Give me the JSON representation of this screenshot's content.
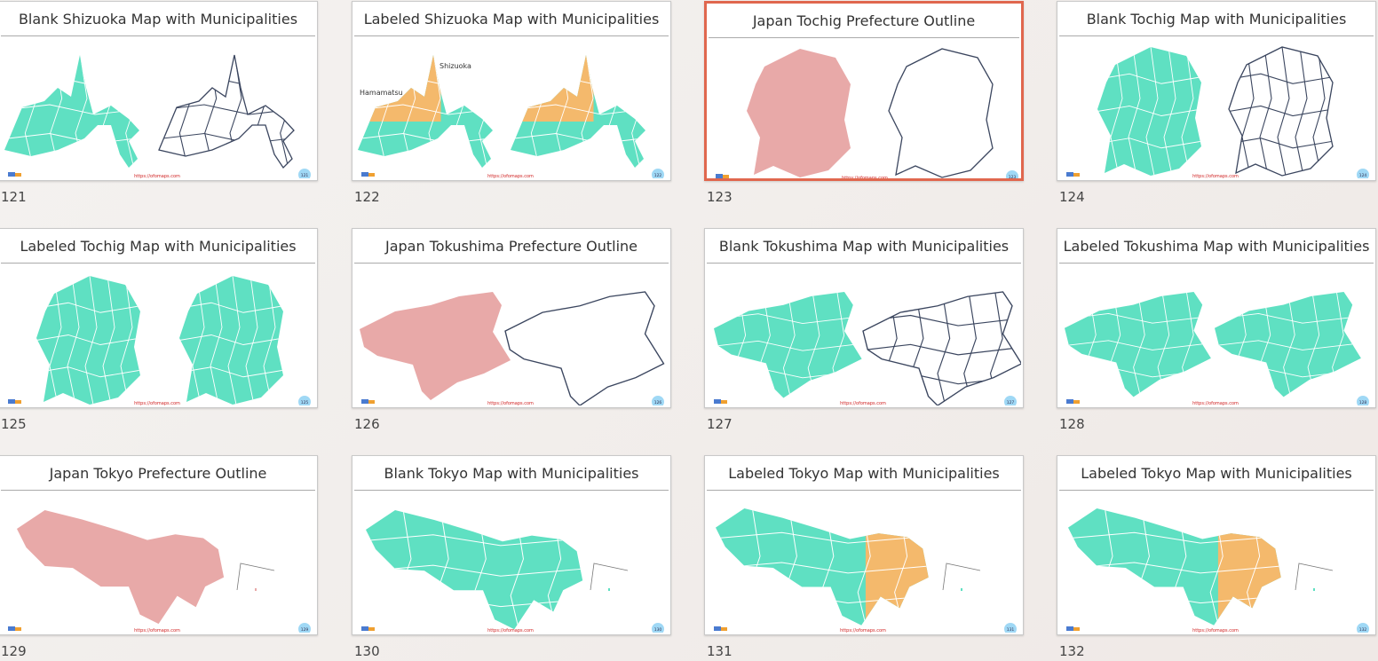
{
  "slides": [
    {
      "title": "Blank Shizuoka Map with Municipalities",
      "number": 121,
      "url": "https://ofomaps.com",
      "badge": 121
    },
    {
      "title": "Labeled Shizuoka Map with Municipalities",
      "number": 122,
      "url": "https://ofomaps.com",
      "badge": 122,
      "labels": [
        "Hamamatsu",
        "Shizuoka"
      ]
    },
    {
      "title": "Japan Tochig Prefecture Outline",
      "number": 123,
      "url": "https://ofomaps.com",
      "badge": 123
    },
    {
      "title": "Blank Tochig Map with Municipalities",
      "number": 124,
      "url": "https://ofomaps.com",
      "badge": 124
    },
    {
      "title": "Labeled Tochig Map with Municipalities",
      "number": 125,
      "url": "https://ofomaps.com",
      "badge": 125
    },
    {
      "title": "Japan Tokushima Prefecture Outline",
      "number": 126,
      "url": "https://ofomaps.com",
      "badge": 126
    },
    {
      "title": "Blank Tokushima Map with Municipalities",
      "number": 127,
      "url": "https://ofomaps.com",
      "badge": 127
    },
    {
      "title": "Labeled Tokushima Map with Municipalities",
      "number": 128,
      "url": "https://ofomaps.com",
      "badge": 128
    },
    {
      "title": "Japan Tokyo Prefecture Outline",
      "number": 129,
      "url": "https://ofomaps.com",
      "badge": 129
    },
    {
      "title": "Blank Tokyo Map with Municipalities",
      "number": 130,
      "url": "https://ofomaps.com",
      "badge": 130
    },
    {
      "title": "Labeled Tokyo Map with Municipalities",
      "number": 131,
      "url": "https://ofomaps.com",
      "badge": 131
    },
    {
      "title": "Labeled Tokyo Map with Municipalities",
      "number": 132,
      "url": "https://ofomaps.com",
      "badge": 132
    }
  ]
}
